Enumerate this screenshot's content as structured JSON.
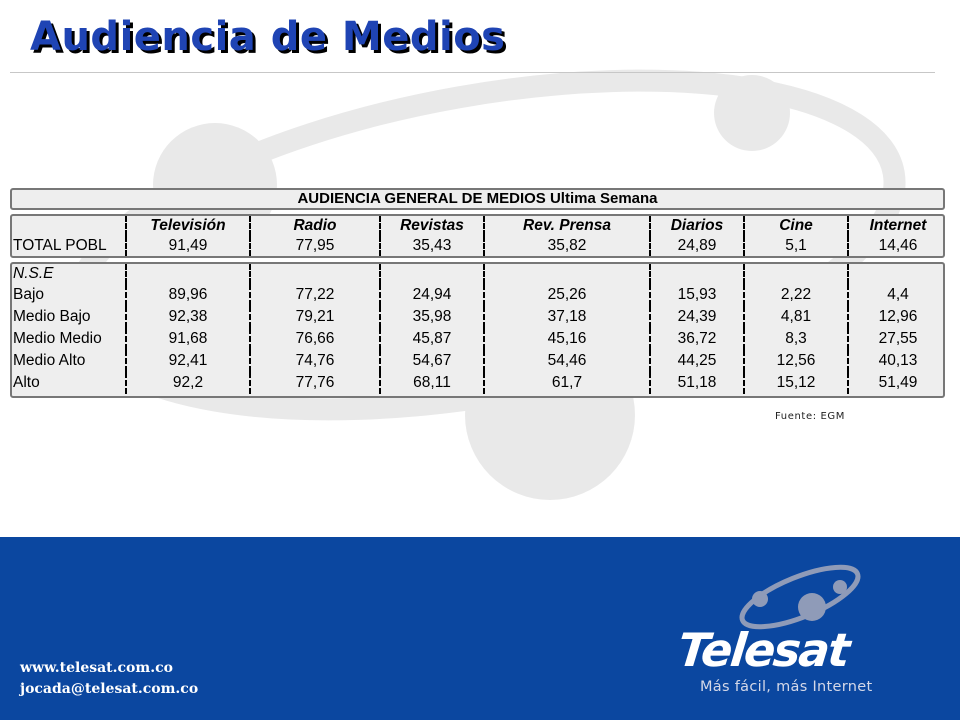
{
  "slide": {
    "title": "Audiencia de Medios",
    "source_note": "Fuente: EGM"
  },
  "table": {
    "title": "AUDIENCIA GENERAL DE MEDIOS Ultima Semana",
    "columns": [
      "Televisión",
      "Radio",
      "Revistas",
      "Rev. Prensa",
      "Diarios",
      "Cine",
      "Internet"
    ],
    "total_row": {
      "label": "TOTAL POBL",
      "values": [
        "91,49",
        "77,95",
        "35,43",
        "35,82",
        "24,89",
        "5,1",
        "14,46"
      ]
    },
    "group_label": "N.S.E",
    "rows": [
      {
        "label": "Bajo",
        "values": [
          "89,96",
          "77,22",
          "24,94",
          "25,26",
          "15,93",
          "2,22",
          "4,4"
        ]
      },
      {
        "label": "Medio Bajo",
        "values": [
          "92,38",
          "79,21",
          "35,98",
          "37,18",
          "24,39",
          "4,81",
          "12,96"
        ]
      },
      {
        "label": "Medio Medio",
        "values": [
          "91,68",
          "76,66",
          "45,87",
          "45,16",
          "36,72",
          "8,3",
          "27,55"
        ]
      },
      {
        "label": "Medio Alto",
        "values": [
          "92,41",
          "74,76",
          "54,67",
          "54,46",
          "44,25",
          "12,56",
          "40,13"
        ]
      },
      {
        "label": "Alto",
        "values": [
          "92,2",
          "77,76",
          "68,11",
          "61,7",
          "51,18",
          "15,12",
          "51,49"
        ]
      }
    ]
  },
  "footer": {
    "website": "www.telesat.com.co",
    "email": "jocada@telesat.com.co",
    "brand_name": "Telesat",
    "tagline": "Más fácil, más Internet"
  },
  "colors": {
    "title_blue": "#1f44b4",
    "footer_blue": "#0b47a0",
    "table_bg": "#eeeeee"
  }
}
